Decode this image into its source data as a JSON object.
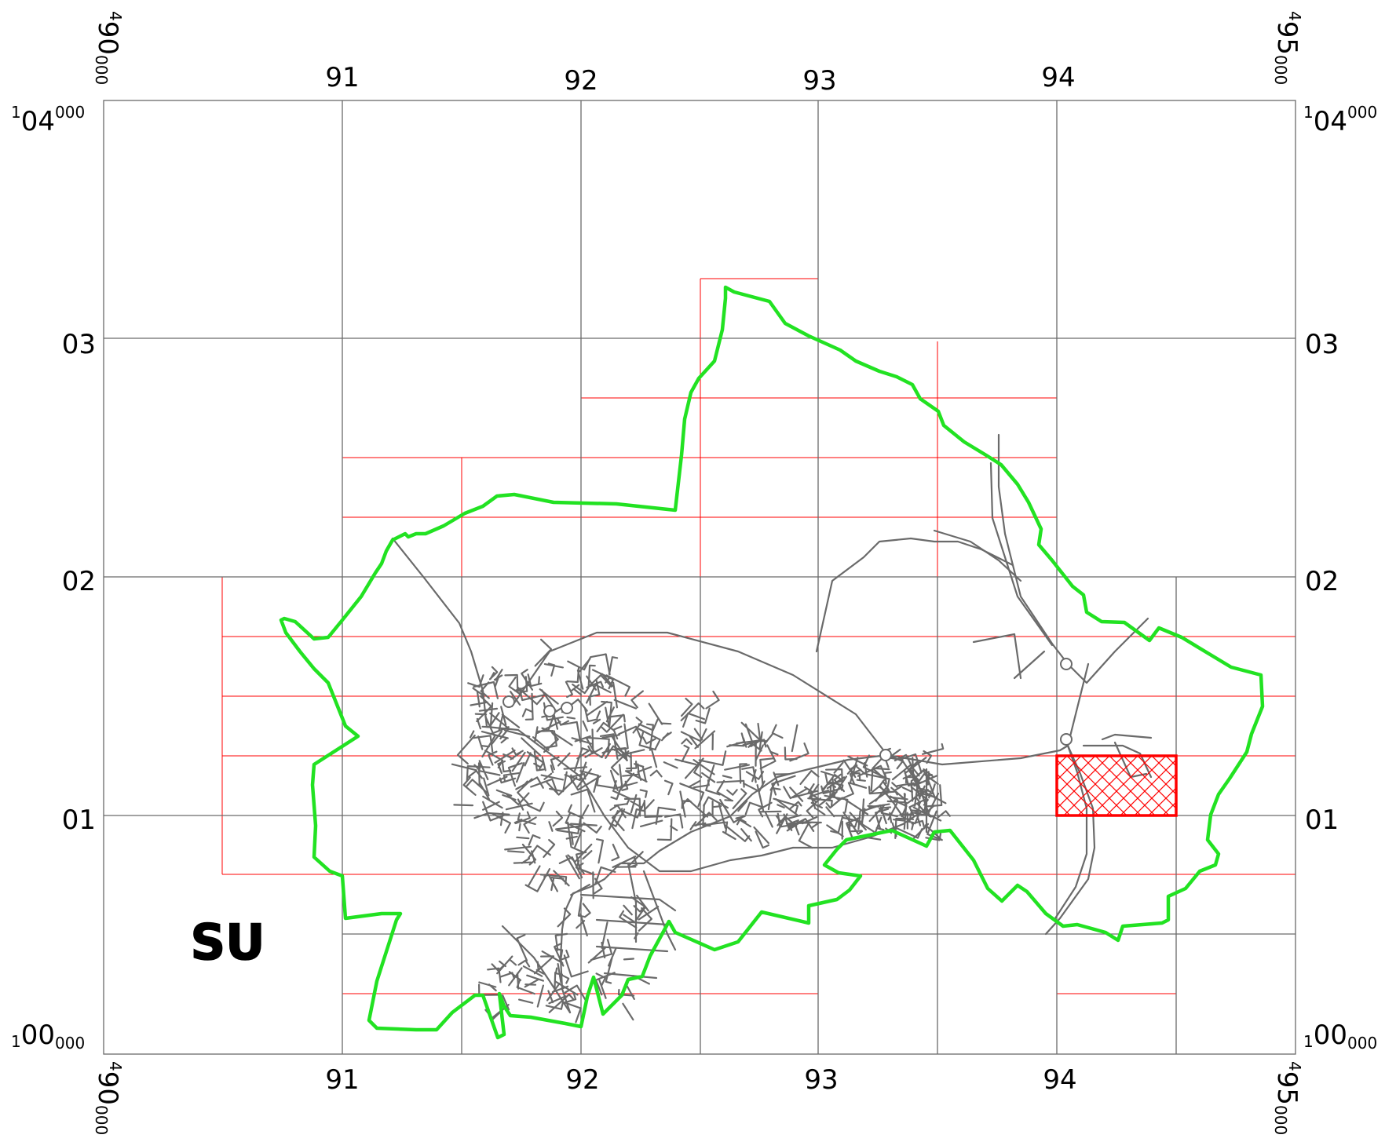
{
  "map": {
    "grid_square_label": "SU",
    "x_tick_labels": [
      "91",
      "92",
      "93",
      "94"
    ],
    "y_tick_labels": [
      "03",
      "02",
      "01"
    ],
    "corner_labels": {
      "x_min": {
        "prefix": "4",
        "main": "90",
        "suffix": "000"
      },
      "x_max": {
        "prefix": "4",
        "main": "95",
        "suffix": "000"
      },
      "y_max": {
        "prefix": "1",
        "main": "04",
        "suffix": "000"
      },
      "y_min": {
        "prefix": "1",
        "main": "00",
        "suffix": "000"
      }
    },
    "colors": {
      "grid": "#6a6a6a",
      "sheet_lines": "#ff0000",
      "boundary": "#22e222",
      "roads": "#6a6a6a",
      "highlight": "#ff0000"
    }
  }
}
